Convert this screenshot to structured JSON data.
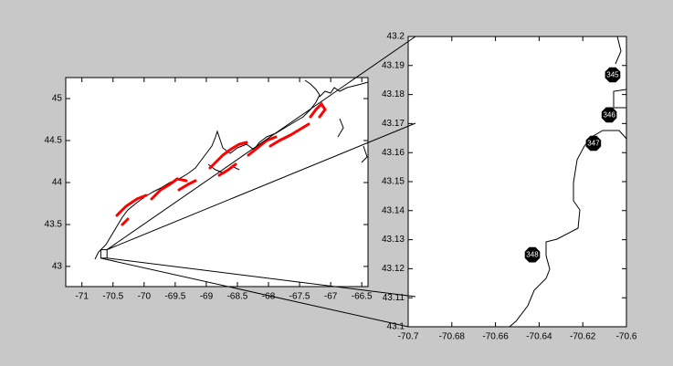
{
  "chart_data": [
    {
      "type": "map",
      "xlim": [
        -71.26,
        -66.4
      ],
      "ylim": [
        42.76,
        45.25
      ],
      "xticks": [
        -71,
        -70.5,
        -70,
        -69.5,
        -69,
        -68.5,
        -68,
        -67.5,
        -67,
        -66.5
      ],
      "yticks": [
        43,
        43.5,
        44,
        44.5,
        45
      ]
    },
    {
      "type": "map",
      "xlim": [
        -70.7,
        -70.6
      ],
      "ylim": [
        43.1,
        43.2
      ],
      "xticks": [
        -70.7,
        -70.68,
        -70.66,
        -70.64,
        -70.62,
        -70.6
      ],
      "yticks": [
        43.1,
        43.11,
        43.12,
        43.13,
        43.14,
        43.15,
        43.16,
        43.17,
        43.18,
        43.19,
        43.2
      ],
      "points": [
        {
          "label": "345",
          "x": -70.6063,
          "y": 43.1868
        },
        {
          "label": "346",
          "x": -70.6079,
          "y": 43.173
        },
        {
          "label": "347",
          "x": -70.6151,
          "y": 43.1632
        },
        {
          "label": "348",
          "x": -70.6431,
          "y": 43.1248
        }
      ]
    }
  ]
}
